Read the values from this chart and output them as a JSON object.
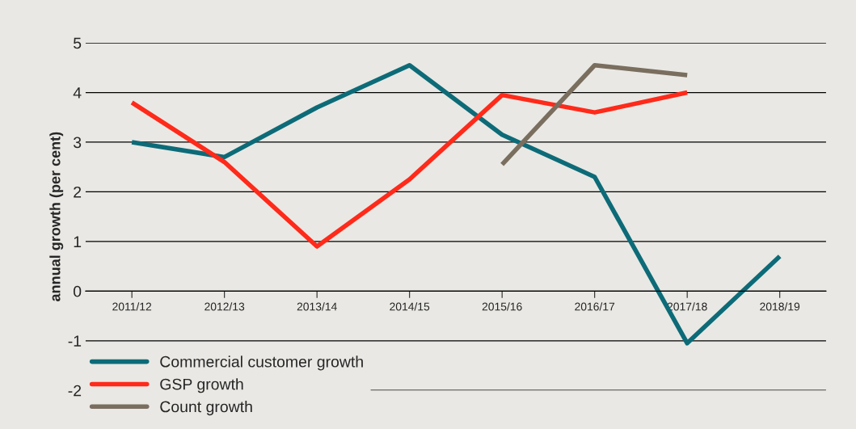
{
  "chart_data": {
    "type": "line",
    "ylabel": "annual growth (per cent)",
    "categories": [
      "2011/12",
      "2012/13",
      "2013/14",
      "2014/15",
      "2015/16",
      "2016/17",
      "2017/18",
      "2018/19"
    ],
    "series": [
      {
        "name": "Commercial customer growth",
        "color": "#0d6b78",
        "values": [
          3.0,
          2.7,
          3.7,
          4.55,
          3.15,
          2.3,
          -1.05,
          0.7
        ]
      },
      {
        "name": "GSP growth",
        "color": "#ff2a1a",
        "values": [
          3.8,
          2.6,
          0.9,
          2.25,
          3.95,
          3.6,
          4.0,
          null
        ]
      },
      {
        "name": "Count growth",
        "color": "#7a6e5f",
        "values": [
          null,
          null,
          null,
          null,
          2.55,
          4.55,
          4.35,
          null
        ]
      }
    ],
    "ylim": [
      -2,
      5
    ],
    "yticks": [
      -2,
      -1,
      0,
      1,
      2,
      3,
      4,
      5
    ],
    "grid": "y",
    "legend": "bottom left",
    "marker": "none",
    "line_style": "solid"
  }
}
